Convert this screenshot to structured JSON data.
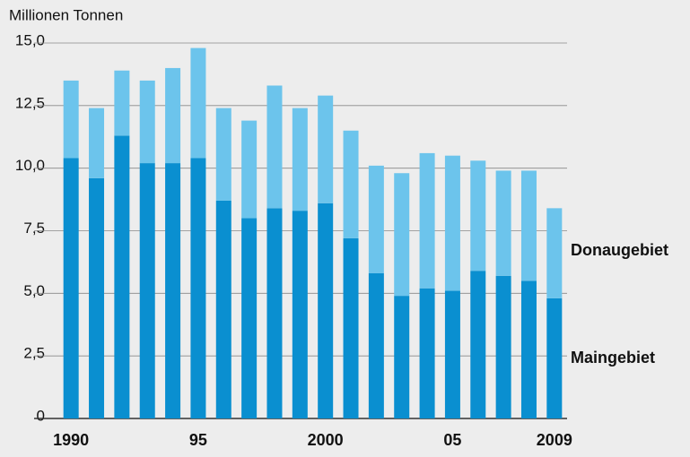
{
  "chart_data": {
    "type": "stacked-bar",
    "ylabel": "Millionen Tonnen",
    "categories": [
      "1990",
      null,
      null,
      null,
      null,
      "95",
      null,
      null,
      null,
      null,
      "2000",
      null,
      null,
      null,
      null,
      "05",
      null,
      null,
      null,
      "2009"
    ],
    "series": [
      {
        "name": "Maingebiet",
        "color": "#0a8fd0",
        "values": [
          10.4,
          9.6,
          11.3,
          10.2,
          10.2,
          10.4,
          8.7,
          8.0,
          8.4,
          8.3,
          8.6,
          7.2,
          5.8,
          4.9,
          5.2,
          5.1,
          5.9,
          5.7,
          5.5,
          4.8
        ]
      },
      {
        "name": "Donaugebiet",
        "color": "#6cc4ec",
        "values": [
          3.1,
          2.8,
          2.6,
          3.3,
          3.8,
          4.4,
          3.7,
          3.9,
          4.9,
          4.1,
          4.3,
          4.3,
          4.3,
          4.9,
          5.4,
          5.4,
          4.4,
          4.2,
          4.4,
          3.6
        ]
      }
    ],
    "ylim": [
      0,
      15
    ],
    "yticks": [
      0,
      {
        "value": 2.5,
        "label": "2,5"
      },
      {
        "value": 5,
        "label": "5,0"
      },
      {
        "value": 7.5,
        "label": "7,5"
      },
      {
        "value": 10,
        "label": "10,0"
      },
      {
        "value": 12.5,
        "label": "12,5"
      },
      {
        "value": 15,
        "label": "15,0"
      }
    ],
    "grid": true
  }
}
